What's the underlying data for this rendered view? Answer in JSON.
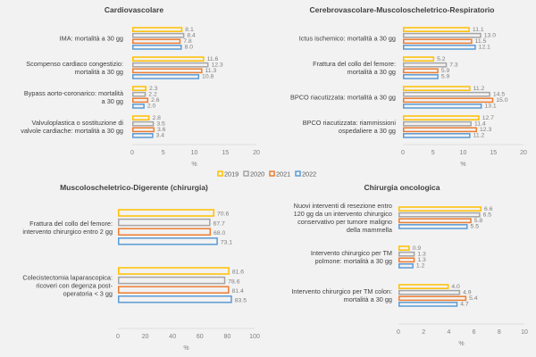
{
  "chart_data": [
    {
      "type": "bar",
      "orientation": "horizontal",
      "title": "Cardiovascolare",
      "xlabel": "%",
      "xlim": [
        0,
        20
      ],
      "xticks": [
        0,
        5,
        10,
        15,
        20
      ],
      "categories": [
        [
          "IMA: mortalità a 30 gg"
        ],
        [
          "Scompenso cardiaco congestizio:",
          "mortalità a 30 gg"
        ],
        [
          "Bypass aorto-coronarico: mortalità",
          "a 30 gg"
        ],
        [
          "Valvuloplastica o sostituzione di",
          "valvole cardiache: mortalità a 30 gg"
        ]
      ],
      "series": [
        {
          "name": "2019",
          "values": [
            8.1,
            11.6,
            2.3,
            2.8
          ]
        },
        {
          "name": "2020",
          "values": [
            8.4,
            12.3,
            2.2,
            3.5
          ]
        },
        {
          "name": "2021",
          "values": [
            7.8,
            11.3,
            2.6,
            3.6
          ]
        },
        {
          "name": "2022",
          "values": [
            8.0,
            10.8,
            2.0,
            3.4
          ]
        }
      ]
    },
    {
      "type": "bar",
      "orientation": "horizontal",
      "title": "Cerebrovascolare-Muscoloscheletrico-Respiratorio",
      "xlabel": "%",
      "xlim": [
        0,
        20
      ],
      "xticks": [
        0,
        5,
        10,
        15,
        20
      ],
      "categories": [
        [
          "Ictus ischemico: mortalità a 30 gg"
        ],
        [
          "Frattura del collo del femore:",
          "mortalità a 30 gg"
        ],
        [
          "BPCO riacutizzata: mortalità a 30 gg"
        ],
        [
          "BPCO riacutizzata: riammissioni",
          "ospedaliere a 30 gg"
        ]
      ],
      "series": [
        {
          "name": "2019",
          "values": [
            11.1,
            5.2,
            11.2,
            12.7
          ]
        },
        {
          "name": "2020",
          "values": [
            13.0,
            7.3,
            14.5,
            11.4
          ]
        },
        {
          "name": "2021",
          "values": [
            11.5,
            5.9,
            15.0,
            12.3
          ]
        },
        {
          "name": "2022",
          "values": [
            12.1,
            5.9,
            13.1,
            11.2
          ]
        }
      ]
    },
    {
      "type": "bar",
      "orientation": "horizontal",
      "title": "Muscoloscheletrico-Digerente (chirurgia)",
      "xlabel": "%",
      "xlim": [
        0,
        100
      ],
      "xticks": [
        0,
        20,
        40,
        60,
        80,
        100
      ],
      "categories": [
        [
          "Frattura del collo del femore:",
          "intervento chirurgico entro 2 gg"
        ],
        [
          "Colecistectomia laparascopica:",
          "ricoveri con degenza post-",
          "operatoria < 3 gg"
        ]
      ],
      "series": [
        {
          "name": "2019",
          "values": [
            70.6,
            81.6
          ]
        },
        {
          "name": "2020",
          "values": [
            67.7,
            78.6
          ]
        },
        {
          "name": "2021",
          "values": [
            68.0,
            81.4
          ]
        },
        {
          "name": "2022",
          "values": [
            73.1,
            83.5
          ]
        }
      ]
    },
    {
      "type": "bar",
      "orientation": "horizontal",
      "title": "Chirurgia oncologica",
      "xlabel": "%",
      "xlim": [
        0,
        10
      ],
      "xticks": [
        0,
        2,
        4,
        6,
        8,
        10
      ],
      "categories": [
        [
          "Nuovi interventi di resezione entro",
          "120 gg da un intervento chirurgico",
          "conservativo per tumore maligno",
          "della mammella"
        ],
        [
          "Intervento chirurgico per TM",
          "polmone: mortalità a 30 gg"
        ],
        [
          "Intervento chirurgico per TM colon:",
          "mortalità a 30 gg"
        ]
      ],
      "series": [
        {
          "name": "2019",
          "values": [
            6.6,
            0.9,
            4.0
          ]
        },
        {
          "name": "2020",
          "values": [
            6.5,
            1.3,
            4.9
          ]
        },
        {
          "name": "2021",
          "values": [
            5.8,
            1.3,
            5.4
          ]
        },
        {
          "name": "2022",
          "values": [
            5.5,
            1.2,
            4.7
          ]
        }
      ]
    }
  ],
  "legend": {
    "placement": "center",
    "items": [
      {
        "label": "2019",
        "color": "#ffc000"
      },
      {
        "label": "2020",
        "color": "#a5a5a5"
      },
      {
        "label": "2021",
        "color": "#ed7d31"
      },
      {
        "label": "2022",
        "color": "#5b9bd5"
      }
    ]
  }
}
